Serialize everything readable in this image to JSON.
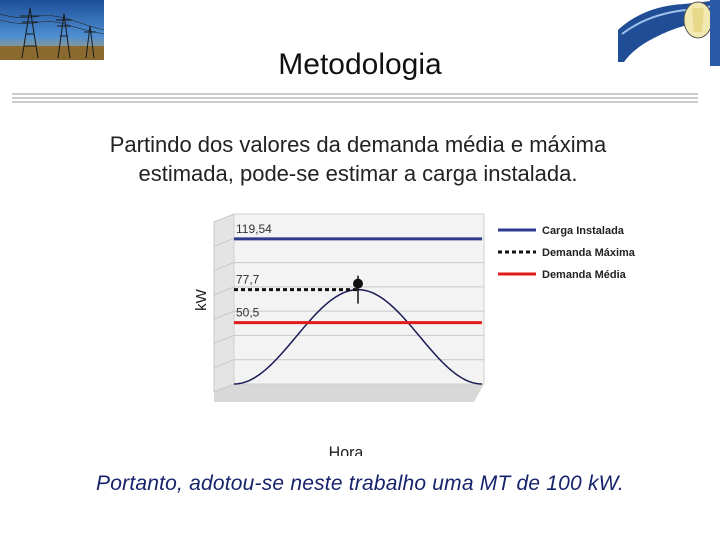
{
  "slide": {
    "title": "Metodologia",
    "intro_line1": "Partindo dos valores da demanda média e máxima",
    "intro_line2": "estimada, pode-se estimar a carga instalada.",
    "conclusion": "Portanto, adotou-se neste trabalho uma MT de 100 kW."
  },
  "chart_data": {
    "type": "line",
    "title": "",
    "xlabel": "Hora",
    "ylabel": "kW",
    "ylim": [
      0,
      140
    ],
    "grid": true,
    "legend_position": "right",
    "peak_x": 0.5,
    "series": [
      {
        "name": "Carga Instalada",
        "value": 119.54,
        "label": "119,54",
        "color": "#2e3a8c",
        "style": "solid"
      },
      {
        "name": "Demanda Máxima",
        "value": 77.7,
        "label": "77,7",
        "color": "#111111",
        "style": "dashed"
      },
      {
        "name": "Demanda Média",
        "value": 50.5,
        "label": "50,5",
        "color": "#e01b1b",
        "style": "solid"
      }
    ],
    "curve": {
      "min": 0,
      "max": 77.7,
      "color": "#1a1a55"
    }
  }
}
